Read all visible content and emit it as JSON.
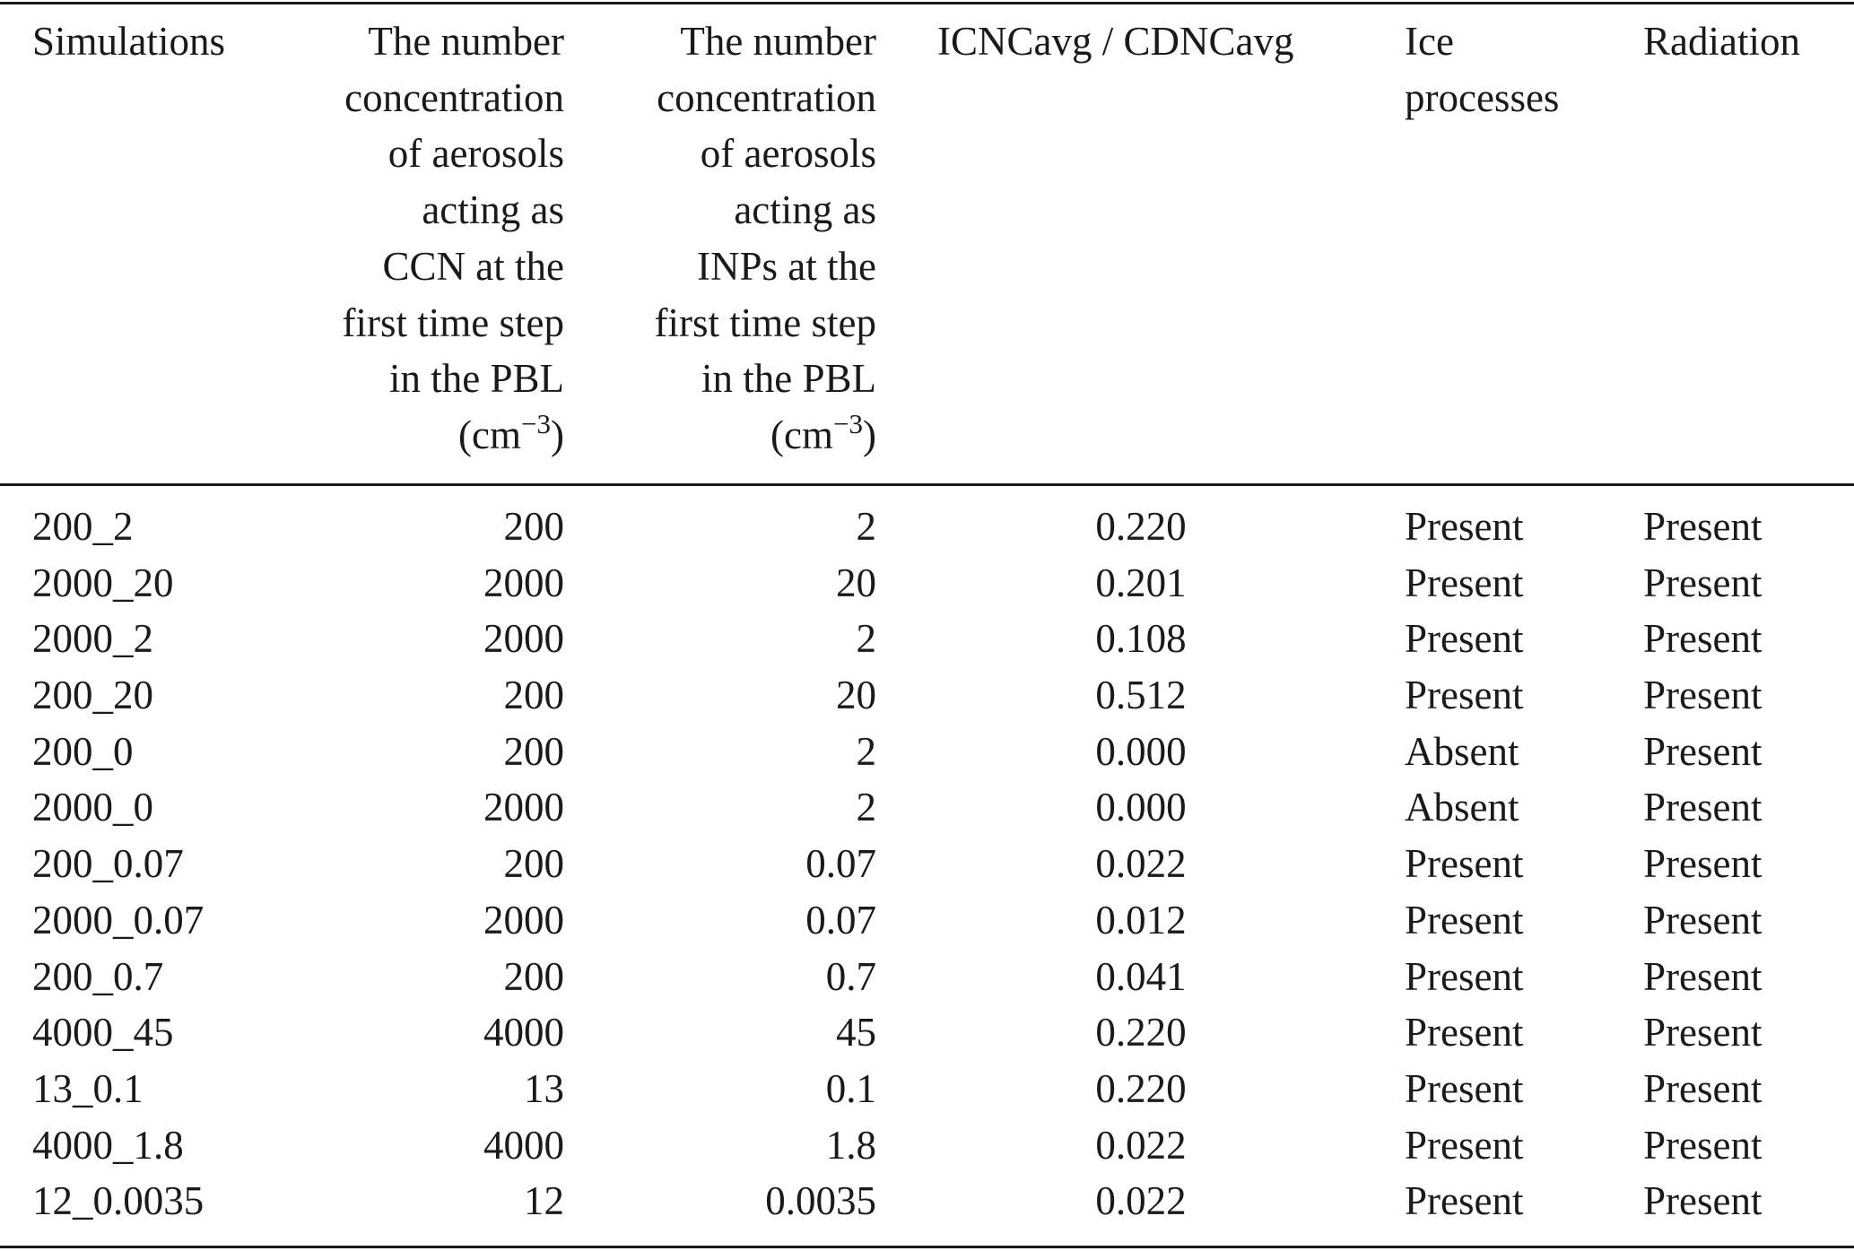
{
  "table": {
    "headers": [
      {
        "text": "Simulations"
      },
      {
        "text": "The number\nconcentration\nof aerosols\nacting as\nCCN at the\nfirst time step\nin the PBL",
        "unit_pre": "(cm",
        "unit_sup": "−3",
        "unit_post": ")"
      },
      {
        "text": "The number\nconcentration\nof aerosols\nacting as\nINPs at the\nfirst time step\nin the PBL",
        "unit_pre": "(cm",
        "unit_sup": "−3",
        "unit_post": ")"
      },
      {
        "text": "ICNCavg / CDNCavg"
      },
      {
        "text": "Ice\nprocesses"
      },
      {
        "text": "Radiation"
      }
    ],
    "rows": [
      [
        "200_2",
        "200",
        "2",
        "0.220",
        "Present",
        "Present"
      ],
      [
        "2000_20",
        "2000",
        "20",
        "0.201",
        "Present",
        "Present"
      ],
      [
        "2000_2",
        "2000",
        "2",
        "0.108",
        "Present",
        "Present"
      ],
      [
        "200_20",
        "200",
        "20",
        "0.512",
        "Present",
        "Present"
      ],
      [
        "200_0",
        "200",
        "2",
        "0.000",
        "Absent",
        "Present"
      ],
      [
        "2000_0",
        "2000",
        "2",
        "0.000",
        "Absent",
        "Present"
      ],
      [
        "200_0.07",
        "200",
        "0.07",
        "0.022",
        "Present",
        "Present"
      ],
      [
        "2000_0.07",
        "2000",
        "0.07",
        "0.012",
        "Present",
        "Present"
      ],
      [
        "200_0.7",
        "200",
        "0.7",
        "0.041",
        "Present",
        "Present"
      ],
      [
        "4000_45",
        "4000",
        "45",
        "0.220",
        "Present",
        "Present"
      ],
      [
        "13_0.1",
        "13",
        "0.1",
        "0.220",
        "Present",
        "Present"
      ],
      [
        "4000_1.8",
        "4000",
        "1.8",
        "0.022",
        "Present",
        "Present"
      ],
      [
        "12_0.0035",
        "12",
        "0.0035",
        "0.022",
        "Present",
        "Present"
      ]
    ]
  }
}
